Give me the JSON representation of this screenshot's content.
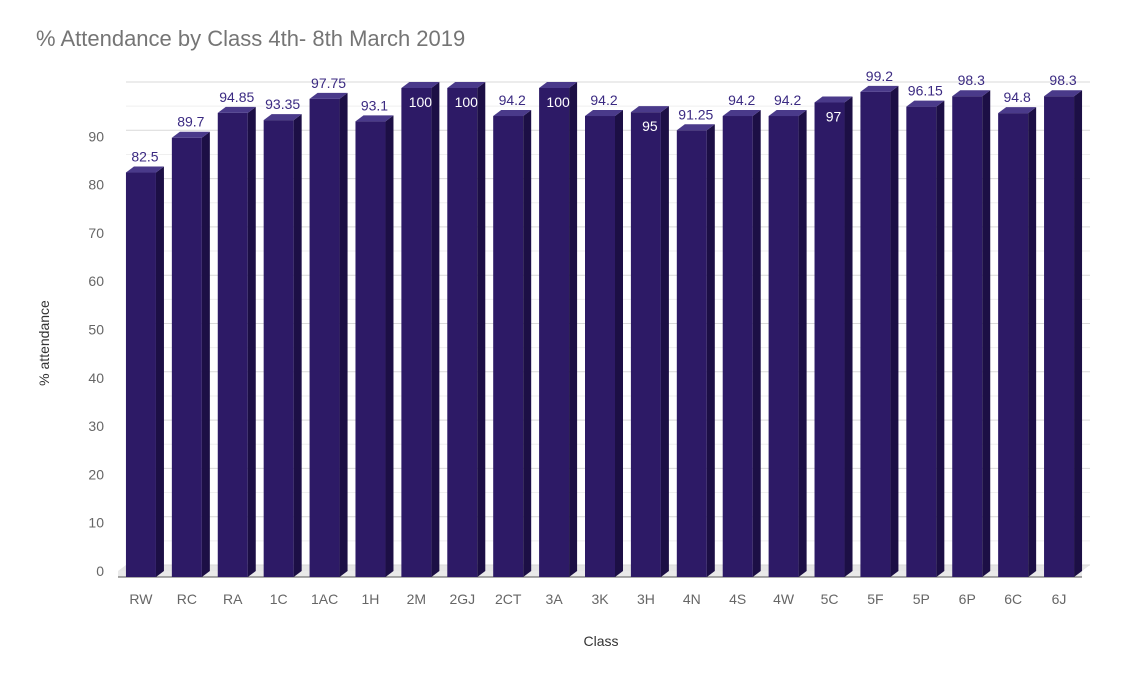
{
  "chart_data": {
    "type": "bar",
    "title": "% Attendance by Class 4th- 8th March 2019",
    "xlabel": "Class",
    "ylabel": "% attendance",
    "ylim": [
      0,
      100
    ],
    "yticks": [
      0,
      10,
      20,
      30,
      40,
      50,
      60,
      70,
      80,
      90
    ],
    "grid": true,
    "categories": [
      "RW",
      "RC",
      "RA",
      "1C",
      "1AC",
      "1H",
      "2M",
      "2GJ",
      "2CT",
      "3A",
      "3K",
      "3H",
      "4N",
      "4S",
      "4W",
      "5C",
      "5F",
      "5P",
      "6P",
      "6C",
      "6J"
    ],
    "values": [
      82.5,
      89.7,
      94.85,
      93.35,
      97.75,
      93.1,
      100,
      100,
      94.2,
      100,
      94.2,
      95,
      91.25,
      94.2,
      94.2,
      97,
      99.2,
      96.15,
      98.3,
      94.8,
      98.3
    ],
    "data_labels": [
      "82.5",
      "89.7",
      "94.85",
      "93.35",
      "97.75",
      "93.1",
      "100",
      "100",
      "94.2",
      "100",
      "94.2",
      "95",
      "91.25",
      "94.2",
      "94.2",
      "97",
      "99.2",
      "96.15",
      "98.3",
      "94.8",
      "98.3"
    ],
    "inside_labels": [
      "2M",
      "2GJ",
      "3A",
      "3H",
      "5C"
    ]
  },
  "colors": {
    "bar_front": "#2d1a66",
    "bar_side": "#1c0f45",
    "bar_top": "#4a3a8a",
    "label_outside": "#3b2a82",
    "label_inside": "#ffffff"
  }
}
